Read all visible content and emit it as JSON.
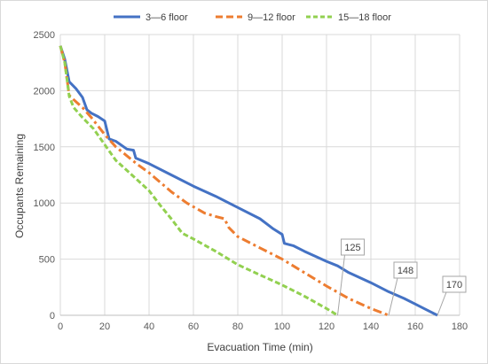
{
  "chart_data": {
    "type": "line",
    "xlabel": "Evacuation Time (min)",
    "ylabel": "Occupants Remaining",
    "xlim": [
      0,
      180
    ],
    "ylim": [
      0,
      2500
    ],
    "xticks": [
      "0",
      "20",
      "40",
      "60",
      "80",
      "100",
      "120",
      "140",
      "160",
      "180"
    ],
    "yticks": [
      "0",
      "500",
      "1000",
      "1500",
      "2000",
      "2500"
    ],
    "grid": "vertical and horizontal major gridlines",
    "legend_position": "top",
    "series": [
      {
        "name": "3—6 floor",
        "color": "#4472c4",
        "dash": "solid",
        "points": [
          [
            0,
            2400
          ],
          [
            2,
            2280
          ],
          [
            4,
            2080
          ],
          [
            5,
            2060
          ],
          [
            7,
            2020
          ],
          [
            10,
            1940
          ],
          [
            12,
            1830
          ],
          [
            14,
            1800
          ],
          [
            17,
            1770
          ],
          [
            20,
            1730
          ],
          [
            22,
            1570
          ],
          [
            25,
            1550
          ],
          [
            30,
            1480
          ],
          [
            33,
            1470
          ],
          [
            34,
            1400
          ],
          [
            40,
            1350
          ],
          [
            50,
            1250
          ],
          [
            60,
            1150
          ],
          [
            70,
            1060
          ],
          [
            80,
            960
          ],
          [
            90,
            860
          ],
          [
            96,
            770
          ],
          [
            100,
            720
          ],
          [
            101,
            640
          ],
          [
            105,
            620
          ],
          [
            110,
            570
          ],
          [
            120,
            480
          ],
          [
            125,
            440
          ],
          [
            130,
            380
          ],
          [
            140,
            290
          ],
          [
            148,
            210
          ],
          [
            155,
            150
          ],
          [
            160,
            100
          ],
          [
            165,
            50
          ],
          [
            170,
            0
          ]
        ]
      },
      {
        "name": "9—12 floor",
        "color": "#ed7d31",
        "dash": "dashdot",
        "points": [
          [
            0,
            2400
          ],
          [
            2,
            2250
          ],
          [
            4,
            1960
          ],
          [
            6,
            1920
          ],
          [
            10,
            1850
          ],
          [
            14,
            1760
          ],
          [
            20,
            1610
          ],
          [
            25,
            1500
          ],
          [
            30,
            1420
          ],
          [
            35,
            1340
          ],
          [
            40,
            1270
          ],
          [
            50,
            1100
          ],
          [
            57,
            1000
          ],
          [
            65,
            910
          ],
          [
            70,
            880
          ],
          [
            74,
            860
          ],
          [
            76,
            780
          ],
          [
            80,
            700
          ],
          [
            90,
            600
          ],
          [
            100,
            500
          ],
          [
            110,
            380
          ],
          [
            120,
            260
          ],
          [
            130,
            150
          ],
          [
            140,
            60
          ],
          [
            148,
            0
          ]
        ]
      },
      {
        "name": "15—18 floor",
        "color": "#92d050",
        "dash": "dashed",
        "points": [
          [
            0,
            2400
          ],
          [
            2,
            2250
          ],
          [
            4,
            1950
          ],
          [
            6,
            1850
          ],
          [
            10,
            1760
          ],
          [
            15,
            1660
          ],
          [
            20,
            1520
          ],
          [
            25,
            1380
          ],
          [
            30,
            1290
          ],
          [
            40,
            1110
          ],
          [
            45,
            980
          ],
          [
            50,
            860
          ],
          [
            55,
            730
          ],
          [
            60,
            680
          ],
          [
            70,
            570
          ],
          [
            80,
            450
          ],
          [
            90,
            360
          ],
          [
            100,
            270
          ],
          [
            110,
            170
          ],
          [
            120,
            60
          ],
          [
            125,
            0
          ]
        ]
      }
    ],
    "annotations": [
      {
        "label": "125",
        "x": 125,
        "y": 0,
        "series": 2
      },
      {
        "label": "148",
        "x": 148,
        "y": 0,
        "series": 1
      },
      {
        "label": "170",
        "x": 170,
        "y": 0,
        "series": 0
      }
    ]
  }
}
